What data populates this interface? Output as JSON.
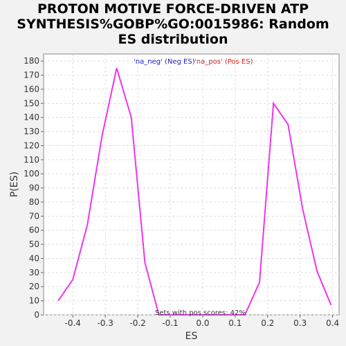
{
  "chart_data": {
    "type": "line",
    "title": "PROTON MOTIVE FORCE-DRIVEN ATP\nSYNTHESIS%GOBP%GO:0015986: Random\nES distribution",
    "xlabel": "ES",
    "ylabel": "P(ES)",
    "xlim": [
      -0.49,
      0.42
    ],
    "ylim": [
      0,
      185
    ],
    "x_ticks": [
      -0.4,
      -0.3,
      -0.2,
      -0.1,
      0.0,
      0.1,
      0.2,
      0.3,
      0.4
    ],
    "x_tick_labels": [
      "-0.4",
      "-0.3",
      "-0.2",
      "-0.1",
      "0.0",
      "0.1",
      "0.2",
      "0.3",
      "0.4"
    ],
    "y_ticks": [
      0,
      10,
      20,
      30,
      40,
      50,
      60,
      70,
      80,
      90,
      100,
      110,
      120,
      130,
      140,
      150,
      160,
      170,
      180
    ],
    "y_tick_labels": [
      "0",
      "10",
      "20",
      "30",
      "40",
      "50",
      "60",
      "70",
      "80",
      "90",
      "100",
      "110",
      "120",
      "130",
      "140",
      "150",
      "160",
      "170",
      "180"
    ],
    "grid": true,
    "legend_position": "top",
    "legend": [
      {
        "label": "'na_neg' (Neg ES)",
        "color": "#2222cc"
      },
      {
        "label": "'na_pos' (Pos ES)",
        "color": "#dd2222"
      }
    ],
    "annotation": "Sets with pos scores: 42%",
    "series": [
      {
        "color": "#ee33ee",
        "x": [
          -0.445,
          -0.4,
          -0.355,
          -0.31,
          -0.265,
          -0.22,
          -0.178,
          -0.135,
          0.13,
          0.175,
          0.218,
          0.263,
          0.308,
          0.352,
          0.395
        ],
        "y": [
          10,
          25,
          64,
          127,
          175,
          140,
          37,
          0,
          0,
          23,
          150,
          135,
          75,
          31,
          7
        ]
      }
    ]
  }
}
